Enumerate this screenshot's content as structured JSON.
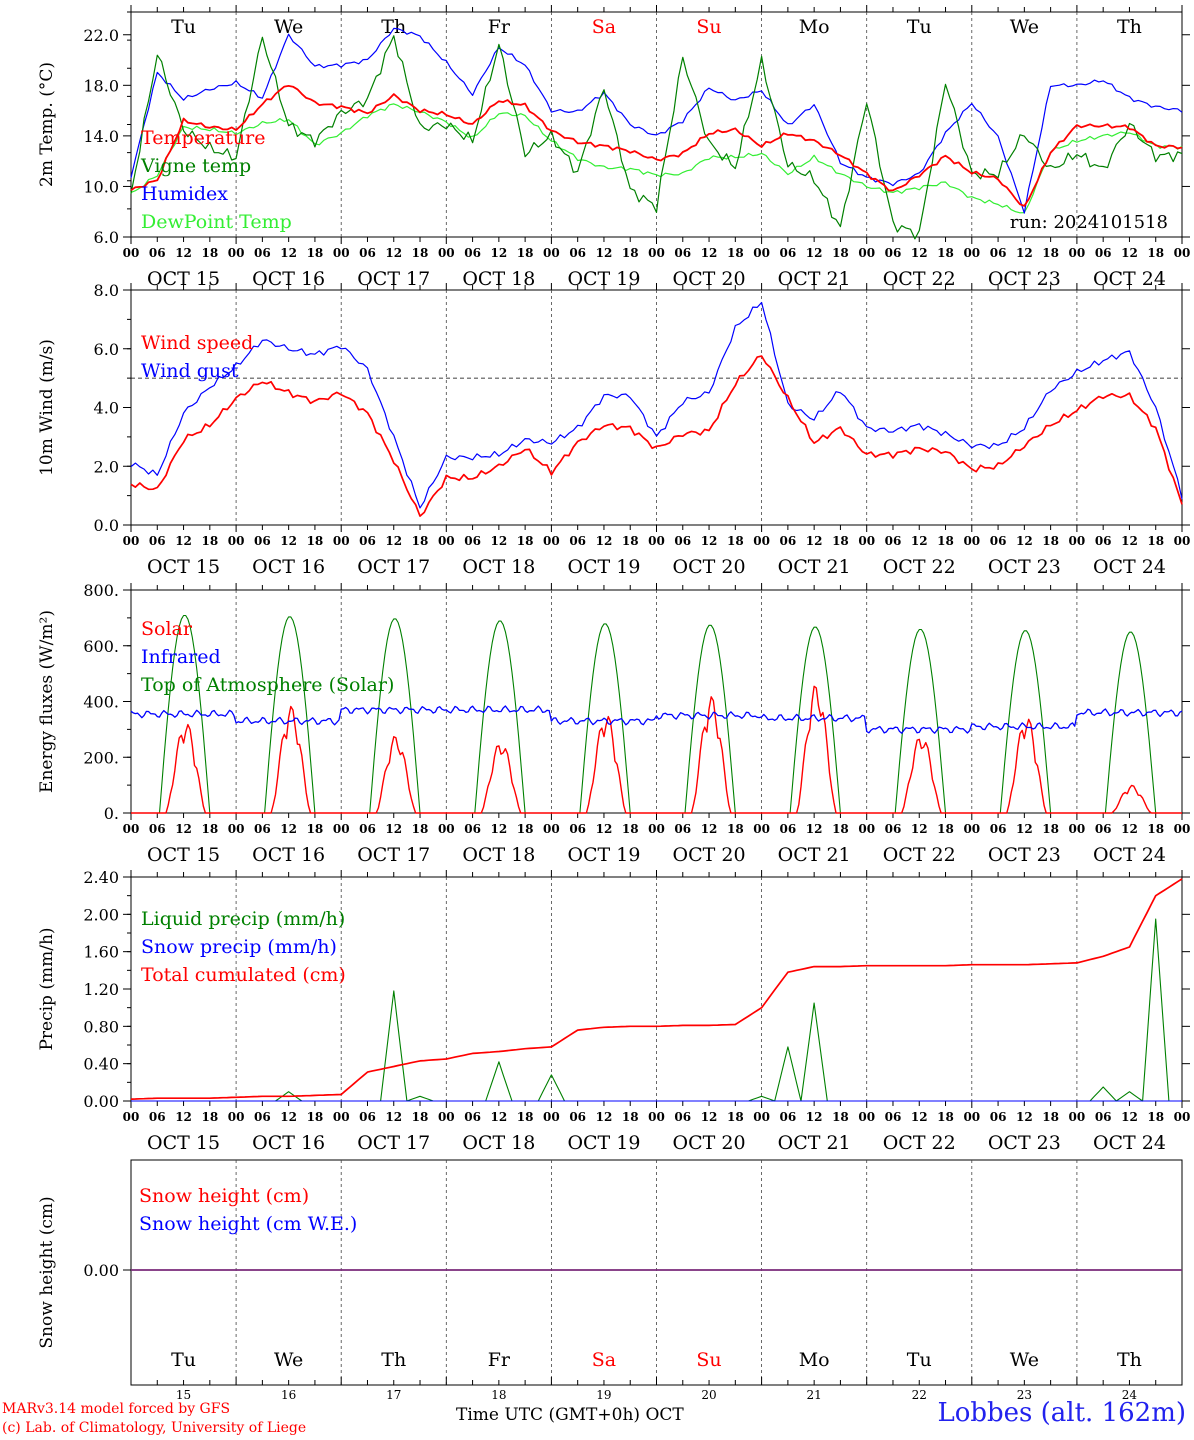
{
  "footer": {
    "credit_line1": "MARv3.14 model forced by GFS",
    "credit_line2": "(c) Lab. of Climatology, University of Liege",
    "xlabel": "Time UTC (GMT+0h)",
    "month": "OCT",
    "station": "Lobbes (alt. 162m)"
  },
  "run_label": "run: 2024101518",
  "days": {
    "weekday_labels": [
      "Tu",
      "We",
      "Th",
      "Fr",
      "Sa",
      "Su",
      "Mo",
      "Tu",
      "We",
      "Th"
    ],
    "weekend_flags": [
      false,
      false,
      false,
      false,
      true,
      true,
      false,
      false,
      false,
      false
    ],
    "date_labels": [
      "OCT 15",
      "OCT 16",
      "OCT 17",
      "OCT 18",
      "OCT 19",
      "OCT 20",
      "OCT 21",
      "OCT 22",
      "OCT 23",
      "OCT 24"
    ],
    "day_numbers": [
      "15",
      "16",
      "17",
      "18",
      "19",
      "20",
      "21",
      "22",
      "23",
      "24"
    ],
    "hour_ticks": [
      "00",
      "06",
      "12",
      "18"
    ],
    "end_tick": "00"
  },
  "colors": {
    "red": "#ff0000",
    "green": "#008000",
    "blue": "#0000ff",
    "lightgreen": "#33ee33",
    "purple": "#7a2a7a"
  },
  "chart_data": [
    {
      "type": "line",
      "ylabel": "2m Temp. (°C)",
      "ylim": [
        6,
        23.8
      ],
      "yticks": [
        "6.0",
        "10.0",
        "14.0",
        "18.0",
        "22.0"
      ],
      "x_hours": [
        0,
        6,
        12,
        18,
        24,
        30,
        36,
        42,
        48,
        54,
        60,
        66,
        72,
        78,
        84,
        90,
        96,
        102,
        108,
        114,
        120,
        126,
        132,
        138,
        144,
        150,
        156,
        162,
        168,
        174,
        180,
        186,
        192,
        198,
        204,
        210,
        216,
        222,
        228,
        234,
        240
      ],
      "series": [
        {
          "name": "Temperature",
          "color": "red",
          "values": [
            9.7,
            10.5,
            15.2,
            14.7,
            14.5,
            16.5,
            18.1,
            16.6,
            16.3,
            15.8,
            17.2,
            16.0,
            15.7,
            14.9,
            16.8,
            16.4,
            14.4,
            13.5,
            13.2,
            12.8,
            12.1,
            12.6,
            14.2,
            14.5,
            13.2,
            14.2,
            13.6,
            12.5,
            11.0,
            9.6,
            10.9,
            12.4,
            11.1,
            10.6,
            8.3,
            12.7,
            14.8,
            14.8,
            14.7,
            13.2,
            13.1
          ]
        },
        {
          "name": "Vigne temp",
          "color": "green",
          "values": [
            9.4,
            20.5,
            14.5,
            13.0,
            12.3,
            21.8,
            14.8,
            13.6,
            15.8,
            16.9,
            21.9,
            14.6,
            14.9,
            13.6,
            21.2,
            12.6,
            14.0,
            11.1,
            17.8,
            9.7,
            8.4,
            20.2,
            13.4,
            11.5,
            19.9,
            11.7,
            10.6,
            6.7,
            16.8,
            7.0,
            6.2,
            18.3,
            11.0,
            11.0,
            14.2,
            11.3,
            12.6,
            11.3,
            14.9,
            12.4,
            12.5
          ]
        },
        {
          "name": "Humidex",
          "color": "blue",
          "values": [
            10.8,
            19.0,
            16.9,
            17.7,
            18.2,
            17.0,
            22.0,
            19.5,
            19.6,
            20.0,
            22.5,
            21.9,
            19.8,
            17.3,
            21.0,
            19.6,
            16.0,
            15.9,
            17.4,
            14.9,
            14.0,
            15.2,
            17.8,
            16.8,
            17.6,
            14.8,
            16.5,
            11.9,
            10.7,
            10.2,
            11.0,
            14.2,
            16.6,
            13.9,
            8.0,
            18.0,
            18.0,
            18.4,
            17.0,
            16.3,
            16.0
          ]
        },
        {
          "name": "DewPoint Temp",
          "color": "lightgreen",
          "values": [
            9.4,
            10.9,
            14.7,
            14.5,
            14.2,
            15.0,
            15.3,
            13.3,
            14.2,
            15.6,
            16.5,
            15.9,
            15.1,
            13.8,
            15.8,
            15.6,
            13.6,
            12.2,
            11.5,
            11.4,
            10.9,
            11.0,
            12.3,
            12.3,
            12.6,
            11.0,
            12.3,
            11.0,
            10.0,
            9.5,
            9.9,
            10.3,
            9.1,
            8.6,
            7.8,
            12.8,
            13.6,
            14.0,
            14.3,
            13.2,
            13.1
          ]
        }
      ],
      "legend_placement": "left-center",
      "grid": "vertical day lines"
    },
    {
      "type": "line",
      "ylabel": "10m Wind (m/s)",
      "ylim": [
        0,
        8
      ],
      "yticks": [
        "0.0",
        "2.0",
        "4.0",
        "6.0",
        "8.0"
      ],
      "reference_line": 5.0,
      "x_hours": [
        0,
        6,
        12,
        18,
        24,
        30,
        36,
        42,
        48,
        54,
        60,
        66,
        72,
        78,
        84,
        90,
        96,
        102,
        108,
        114,
        120,
        126,
        132,
        138,
        144,
        150,
        156,
        162,
        168,
        174,
        180,
        186,
        192,
        198,
        204,
        210,
        216,
        222,
        228,
        234,
        240
      ],
      "series": [
        {
          "name": "Wind speed",
          "color": "red",
          "values": [
            1.4,
            1.2,
            2.9,
            3.4,
            4.3,
            4.9,
            4.5,
            4.2,
            4.5,
            3.8,
            2.2,
            0.3,
            1.6,
            1.6,
            2.0,
            2.6,
            1.8,
            2.8,
            3.4,
            3.3,
            2.6,
            3.1,
            3.2,
            4.8,
            5.8,
            4.3,
            2.8,
            3.3,
            2.4,
            2.4,
            2.6,
            2.5,
            1.9,
            2.0,
            2.7,
            3.4,
            3.9,
            4.4,
            4.4,
            3.3,
            0.7
          ]
        },
        {
          "name": "Wind gust",
          "color": "blue",
          "values": [
            2.1,
            1.7,
            3.8,
            4.7,
            5.4,
            6.3,
            6.0,
            5.8,
            6.1,
            5.3,
            3.0,
            0.6,
            2.3,
            2.3,
            2.4,
            2.9,
            2.8,
            3.3,
            4.4,
            4.4,
            3.0,
            4.2,
            4.5,
            6.7,
            7.6,
            4.1,
            3.6,
            4.6,
            3.3,
            3.2,
            3.4,
            3.1,
            2.7,
            2.7,
            3.3,
            4.6,
            5.2,
            5.6,
            5.9,
            4.0,
            1.0
          ]
        }
      ],
      "legend_placement": "left-top"
    },
    {
      "type": "line",
      "ylabel": "Energy fluxes (W/m²)",
      "ylim": [
        0,
        800
      ],
      "yticks": [
        "0.",
        "200.",
        "400.",
        "600.",
        "800."
      ],
      "diurnal_peaks": {
        "toa_peak_per_day": [
          710,
          705,
          698,
          690,
          680,
          675,
          668,
          660,
          655,
          650
        ],
        "solar_peak_per_day": [
          330,
          385,
          280,
          260,
          360,
          420,
          465,
          285,
          350,
          100
        ],
        "infrared_daily_mean": [
          355,
          330,
          370,
          370,
          330,
          350,
          340,
          300,
          310,
          360
        ]
      },
      "series": [
        {
          "name": "Solar",
          "color": "red"
        },
        {
          "name": "Infrared",
          "color": "blue"
        },
        {
          "name": "Top of Atmosphere (Solar)",
          "color": "green"
        }
      ],
      "legend_placement": "left-top"
    },
    {
      "type": "line",
      "ylabel": "Precip (mm/h)",
      "ylim": [
        0,
        2.4
      ],
      "yticks": [
        "0.00",
        "0.40",
        "0.80",
        "1.20",
        "1.60",
        "2.00",
        "2.40"
      ],
      "x_hours": [
        0,
        6,
        12,
        18,
        24,
        30,
        36,
        42,
        48,
        54,
        60,
        66,
        72,
        78,
        84,
        90,
        96,
        102,
        108,
        114,
        120,
        126,
        132,
        138,
        144,
        150,
        156,
        162,
        168,
        174,
        180,
        186,
        192,
        198,
        204,
        210,
        216,
        222,
        228,
        234,
        240
      ],
      "series": [
        {
          "name": "Liquid precip (mm/h)",
          "color": "green",
          "values": [
            0,
            0,
            0,
            0,
            0,
            0,
            0.1,
            0,
            0,
            0,
            1.18,
            0.05,
            0,
            0,
            0.42,
            0,
            0.28,
            0,
            0,
            0,
            0,
            0,
            0,
            0,
            0.05,
            0.58,
            1.05,
            0,
            0,
            0,
            0,
            0,
            0,
            0,
            0,
            0,
            0,
            0.15,
            0.1,
            1.95,
            0
          ]
        },
        {
          "name": "Snow precip (mm/h)",
          "color": "blue",
          "values": [
            0,
            0,
            0,
            0,
            0,
            0,
            0,
            0,
            0,
            0,
            0,
            0,
            0,
            0,
            0,
            0,
            0,
            0,
            0,
            0,
            0,
            0,
            0,
            0,
            0,
            0,
            0,
            0,
            0,
            0,
            0,
            0,
            0,
            0,
            0,
            0,
            0,
            0,
            0,
            0,
            0
          ]
        },
        {
          "name": "Total cumulated (cm)",
          "color": "red",
          "values": [
            0.02,
            0.03,
            0.03,
            0.03,
            0.04,
            0.05,
            0.05,
            0.06,
            0.07,
            0.31,
            0.37,
            0.43,
            0.45,
            0.51,
            0.53,
            0.56,
            0.58,
            0.76,
            0.79,
            0.8,
            0.8,
            0.81,
            0.81,
            0.82,
            1.0,
            1.38,
            1.44,
            1.44,
            1.45,
            1.45,
            1.45,
            1.45,
            1.46,
            1.46,
            1.46,
            1.47,
            1.48,
            1.55,
            1.65,
            2.2,
            2.38
          ]
        }
      ],
      "legend_placement": "left-top"
    },
    {
      "type": "line",
      "ylabel": "Snow height (cm)",
      "yticks": [
        "0.00"
      ],
      "series": [
        {
          "name": "Snow height (cm)",
          "color": "red",
          "values": [
            0,
            0,
            0,
            0,
            0,
            0,
            0,
            0,
            0,
            0,
            0
          ]
        },
        {
          "name": "Snow height (cm W.E.)",
          "color": "blue",
          "values": [
            0,
            0,
            0,
            0,
            0,
            0,
            0,
            0,
            0,
            0,
            0
          ]
        }
      ],
      "legend_placement": "left-top"
    }
  ]
}
